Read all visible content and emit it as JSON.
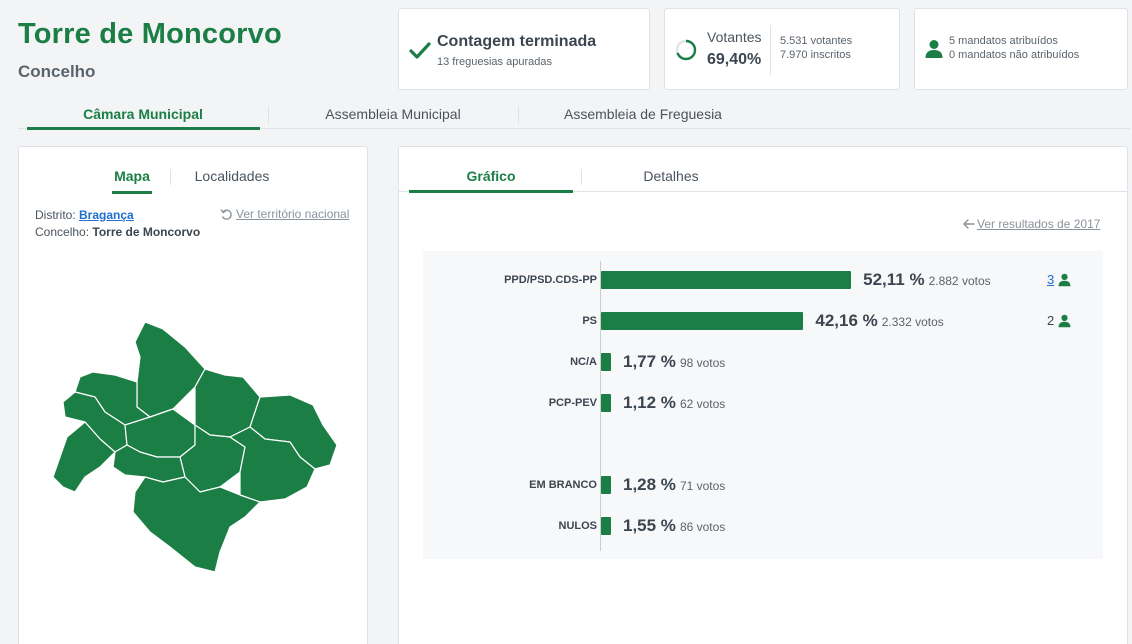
{
  "header": {
    "title": "Torre de Moncorvo",
    "subtitle": "Concelho"
  },
  "status": {
    "count_title": "Contagem terminada",
    "count_sub": "13 freguesias apuradas",
    "voters_label": "Votantes",
    "voters_pct": "69,40%",
    "voters_count": "5.531 votantes",
    "registered_count": "7.970 inscritos",
    "voters_fraction": 0.694,
    "mandates_assigned": "5 mandatos atribuídos",
    "mandates_unassigned": "0 mandatos não atribuídos"
  },
  "main_tabs": [
    {
      "label": "Câmara Municipal"
    },
    {
      "label": "Assembleia Municipal"
    },
    {
      "label": "Assembleia de Freguesia"
    }
  ],
  "left_panel": {
    "tabs": [
      {
        "label": "Mapa"
      },
      {
        "label": "Localidades"
      }
    ],
    "district_label": "Distrito:",
    "district_value": "Bragança",
    "council_label": "Concelho:",
    "council_value": "Torre de Moncorvo",
    "national_link": "Ver território nacional"
  },
  "right_panel": {
    "tabs": [
      {
        "label": "Gráfico"
      },
      {
        "label": "Detalhes"
      }
    ],
    "previous_results_link": "Ver resultados de 2017"
  },
  "colors": {
    "accent": "#1b7e45",
    "link": "#1e6fd0"
  },
  "chart_data": {
    "type": "bar",
    "orientation": "horizontal",
    "categories": [
      "PPD/PSD.CDS-PP",
      "PS",
      "NC/A",
      "PCP-PEV",
      "EM BRANCO",
      "NULOS"
    ],
    "values": [
      52.11,
      42.16,
      1.77,
      1.12,
      1.28,
      1.55
    ],
    "value_labels": [
      "52,11 %",
      "42,16 %",
      "1,77 %",
      "1,12 %",
      "1,28 %",
      "1,55 %"
    ],
    "votes_labels": [
      "2.882 votos",
      "2.332 votos",
      "98 votos",
      "62 votos",
      "71 votos",
      "86 votos"
    ],
    "mandates": [
      "3",
      "2",
      "",
      "",
      "",
      ""
    ],
    "xlim": [
      0,
      100
    ]
  }
}
